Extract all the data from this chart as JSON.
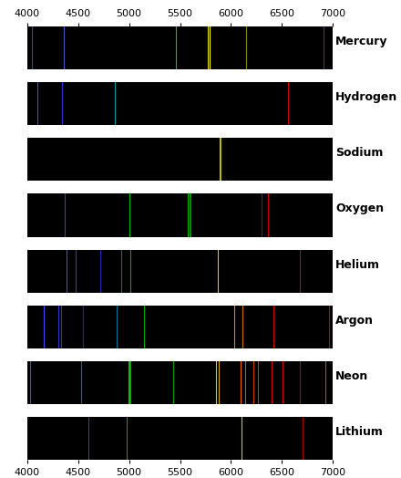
{
  "wl_min": 4000,
  "wl_max": 7000,
  "background": "#000000",
  "fig_bg": "#ffffff",
  "title_fontsize": 9,
  "elements": [
    {
      "name": "Mercury",
      "lines": [
        {
          "wl": 4047,
          "color": "#3333ff"
        },
        {
          "wl": 4358,
          "color": "#4455cc"
        },
        {
          "wl": 5461,
          "color": "#00cc00"
        },
        {
          "wl": 5770,
          "color": "#dddd00"
        },
        {
          "wl": 5791,
          "color": "#ffff00"
        },
        {
          "wl": 6149,
          "color": "#888800"
        },
        {
          "wl": 6907,
          "color": "#cc0000"
        }
      ]
    },
    {
      "name": "Hydrogen",
      "lines": [
        {
          "wl": 4102,
          "color": "#4444ff"
        },
        {
          "wl": 4340,
          "color": "#3333cc"
        },
        {
          "wl": 4861,
          "color": "#009999"
        },
        {
          "wl": 6563,
          "color": "#cc0000"
        }
      ]
    },
    {
      "name": "Sodium",
      "lines": [
        {
          "wl": 5890,
          "color": "#cccc00"
        },
        {
          "wl": 5896,
          "color": "#aaaa00"
        }
      ]
    },
    {
      "name": "Oxygen",
      "lines": [
        {
          "wl": 4368,
          "color": "#3333ff"
        },
        {
          "wl": 5007,
          "color": "#00bb00"
        },
        {
          "wl": 5577,
          "color": "#00aa00"
        },
        {
          "wl": 5592,
          "color": "#009900"
        },
        {
          "wl": 5604,
          "color": "#008800"
        },
        {
          "wl": 6300,
          "color": "#aa0000"
        },
        {
          "wl": 6364,
          "color": "#cc0000"
        }
      ]
    },
    {
      "name": "Helium",
      "lines": [
        {
          "wl": 4388,
          "color": "#4444ff"
        },
        {
          "wl": 4471,
          "color": "#3333dd"
        },
        {
          "wl": 4713,
          "color": "#2222aa"
        },
        {
          "wl": 4922,
          "color": "#007777"
        },
        {
          "wl": 5016,
          "color": "#00aa00"
        },
        {
          "wl": 5876,
          "color": "#cccc00"
        },
        {
          "wl": 6678,
          "color": "#cc0000"
        }
      ]
    },
    {
      "name": "Argon",
      "lines": [
        {
          "wl": 4159,
          "color": "#4444ff"
        },
        {
          "wl": 4300,
          "color": "#3333cc"
        },
        {
          "wl": 4333,
          "color": "#3333bb"
        },
        {
          "wl": 4545,
          "color": "#2222aa"
        },
        {
          "wl": 4879,
          "color": "#007799"
        },
        {
          "wl": 5148,
          "color": "#00aa00"
        },
        {
          "wl": 6032,
          "color": "#dd8800"
        },
        {
          "wl": 6114,
          "color": "#cc7700"
        },
        {
          "wl": 6416,
          "color": "#cc0000"
        },
        {
          "wl": 6965,
          "color": "#cc0000"
        }
      ]
    },
    {
      "name": "Neon",
      "lines": [
        {
          "wl": 4027,
          "color": "#4444ff"
        },
        {
          "wl": 4530,
          "color": "#4444cc"
        },
        {
          "wl": 4997,
          "color": "#00cc00"
        },
        {
          "wl": 5005,
          "color": "#00bb00"
        },
        {
          "wl": 5016,
          "color": "#00aa00"
        },
        {
          "wl": 5434,
          "color": "#009900"
        },
        {
          "wl": 5853,
          "color": "#cccc00"
        },
        {
          "wl": 5882,
          "color": "#ddaa00"
        },
        {
          "wl": 6096,
          "color": "#ee6600"
        },
        {
          "wl": 6143,
          "color": "#dd5500"
        },
        {
          "wl": 6217,
          "color": "#cc4400"
        },
        {
          "wl": 6266,
          "color": "#cc3300"
        },
        {
          "wl": 6402,
          "color": "#cc0000"
        },
        {
          "wl": 6507,
          "color": "#cc0000"
        },
        {
          "wl": 6678,
          "color": "#bb0000"
        },
        {
          "wl": 6929,
          "color": "#aa5500"
        }
      ]
    },
    {
      "name": "Lithium",
      "lines": [
        {
          "wl": 4603,
          "color": "#3333ff"
        },
        {
          "wl": 4972,
          "color": "#00aa00"
        },
        {
          "wl": 6103,
          "color": "#cccc00"
        },
        {
          "wl": 6707,
          "color": "#aa0000"
        }
      ]
    }
  ],
  "xticks": [
    4000,
    4500,
    5000,
    5500,
    6000,
    6500,
    7000
  ]
}
